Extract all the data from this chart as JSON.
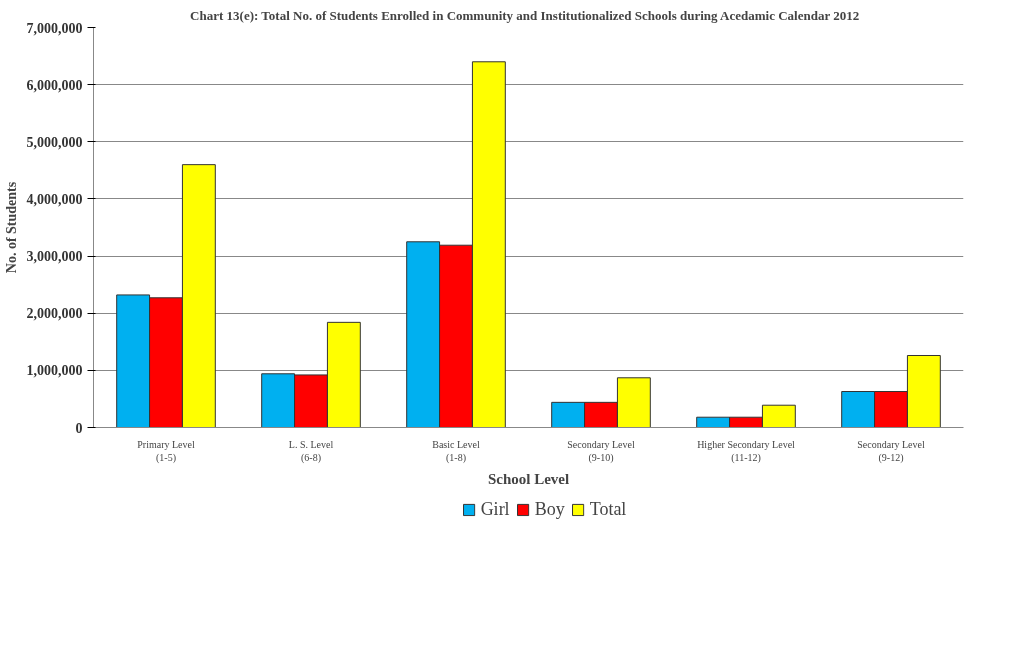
{
  "chart_data": {
    "type": "bar",
    "title": "Chart 13(e): Total  No.  of Students Enrolled in Community and Institutionalized Schools during Acedamic Calendar 2012",
    "xlabel": "School Level",
    "ylabel": "No. of Students",
    "categories": [
      "Primary Level\n(1-5)",
      "L. S. Level\n(6-8)",
      "Basic Level\n(1-8)",
      "Secondary Level\n(9-10)",
      "Higher Secondary Level\n(11-12)",
      "Secondary Level\n(9-12)"
    ],
    "series": [
      {
        "name": "Girl",
        "color": "#00b0f0",
        "values": [
          2320000,
          940000,
          3250000,
          440000,
          180000,
          630000
        ]
      },
      {
        "name": "Boy",
        "color": "#ff0000",
        "values": [
          2270000,
          920000,
          3190000,
          440000,
          180000,
          630000
        ]
      },
      {
        "name": "Total",
        "color": "#ffff00",
        "values": [
          4600000,
          1840000,
          6400000,
          870000,
          390000,
          1260000
        ]
      }
    ],
    "ylim": [
      0,
      7000000
    ],
    "yticks": [
      {
        "value": 0,
        "label": "0"
      },
      {
        "value": 1000000,
        "label": "1,000,000"
      },
      {
        "value": 2000000,
        "label": "2,000,000"
      },
      {
        "value": 3000000,
        "label": "3,000,000"
      },
      {
        "value": 4000000,
        "label": "4,000,000"
      },
      {
        "value": 5000000,
        "label": "5,000,000"
      },
      {
        "value": 6000000,
        "label": "6,000,000"
      },
      {
        "value": 7000000,
        "label": "7,000,000"
      }
    ],
    "grid": "y",
    "legend": "bottom"
  }
}
